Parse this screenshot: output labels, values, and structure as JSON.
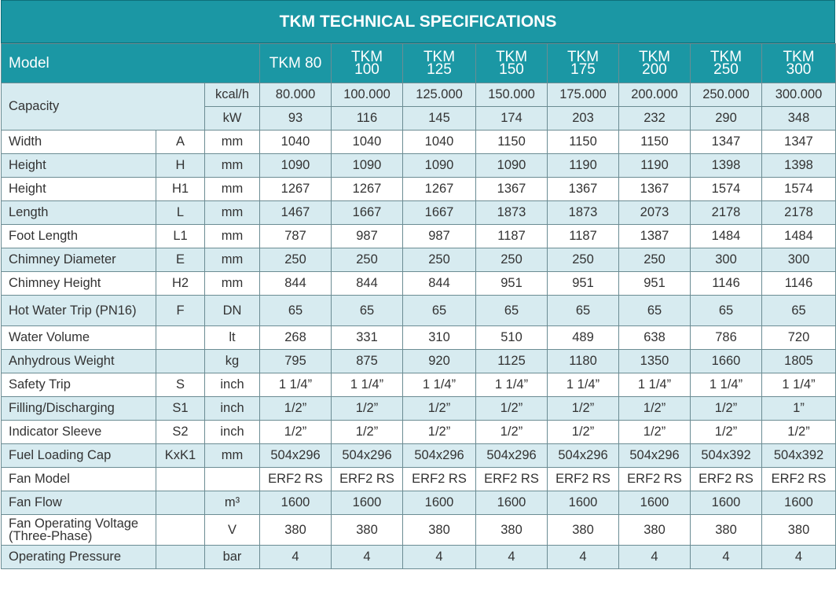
{
  "title": "TKM TECHNICAL SPECIFICATIONS",
  "header": {
    "model_label": "Model",
    "models": [
      {
        "line1": "TKM 80",
        "line2": ""
      },
      {
        "line1": "TKM",
        "line2": "100"
      },
      {
        "line1": "TKM",
        "line2": "125"
      },
      {
        "line1": "TKM",
        "line2": "150"
      },
      {
        "line1": "TKM",
        "line2": "175"
      },
      {
        "line1": "TKM",
        "line2": "200"
      },
      {
        "line1": "TKM",
        "line2": "250"
      },
      {
        "line1": "TKM",
        "line2": "300"
      }
    ]
  },
  "capacity": {
    "label": "Capacity",
    "rows": [
      {
        "unit": "kcal/h",
        "values": [
          "80.000",
          "100.000",
          "125.000",
          "150.000",
          "175.000",
          "200.000",
          "250.000",
          "300.000"
        ]
      },
      {
        "unit": "kW",
        "values": [
          "93",
          "116",
          "145",
          "174",
          "203",
          "232",
          "290",
          "348"
        ]
      }
    ]
  },
  "rows": [
    {
      "label": "Width",
      "symbol": "A",
      "unit": "mm",
      "values": [
        "1040",
        "1040",
        "1040",
        "1150",
        "1150",
        "1150",
        "1347",
        "1347"
      ]
    },
    {
      "label": "Height",
      "symbol": "H",
      "unit": "mm",
      "values": [
        "1090",
        "1090",
        "1090",
        "1090",
        "1190",
        "1190",
        "1398",
        "1398"
      ]
    },
    {
      "label": "Height",
      "symbol": "H1",
      "unit": "mm",
      "values": [
        "1267",
        "1267",
        "1267",
        "1367",
        "1367",
        "1367",
        "1574",
        "1574"
      ]
    },
    {
      "label": "Length",
      "symbol": "L",
      "unit": "mm",
      "values": [
        "1467",
        "1667",
        "1667",
        "1873",
        "1873",
        "2073",
        "2178",
        "2178"
      ]
    },
    {
      "label": "Foot Length",
      "symbol": "L1",
      "unit": "mm",
      "values": [
        "787",
        "987",
        "987",
        "1187",
        "1187",
        "1387",
        "1484",
        "1484"
      ]
    },
    {
      "label": "Chimney Diameter",
      "symbol": "E",
      "unit": "mm",
      "values": [
        "250",
        "250",
        "250",
        "250",
        "250",
        "250",
        "300",
        "300"
      ]
    },
    {
      "label": "Chimney Height",
      "symbol": "H2",
      "unit": "mm",
      "values": [
        "844",
        "844",
        "844",
        "951",
        "951",
        "951",
        "1146",
        "1146"
      ]
    },
    {
      "label": "Hot Water Trip (PN16)",
      "symbol": "F",
      "unit": "DN",
      "values": [
        "65",
        "65",
        "65",
        "65",
        "65",
        "65",
        "65",
        "65"
      ],
      "tall": true
    },
    {
      "label": "Water Volume",
      "symbol": "",
      "unit": "lt",
      "values": [
        "268",
        "331",
        "310",
        "510",
        "489",
        "638",
        "786",
        "720"
      ]
    },
    {
      "label": "Anhydrous Weight",
      "symbol": "",
      "unit": "kg",
      "values": [
        "795",
        "875",
        "920",
        "1125",
        "1180",
        "1350",
        "1660",
        "1805"
      ]
    },
    {
      "label": "Safety Trip",
      "symbol": "S",
      "unit": "inch",
      "values": [
        "1 1/4”",
        "1 1/4”",
        "1 1/4”",
        "1 1/4”",
        "1 1/4”",
        "1 1/4”",
        "1 1/4”",
        "1 1/4”"
      ]
    },
    {
      "label": "Filling/Discharging",
      "symbol": "S1",
      "unit": "inch",
      "values": [
        "1/2”",
        "1/2”",
        "1/2”",
        "1/2”",
        "1/2”",
        "1/2”",
        "1/2”",
        "1”"
      ]
    },
    {
      "label": "Indicator Sleeve",
      "symbol": "S2",
      "unit": "inch",
      "values": [
        "1/2”",
        "1/2”",
        "1/2”",
        "1/2”",
        "1/2”",
        "1/2”",
        "1/2”",
        "1/2”"
      ]
    },
    {
      "label": "Fuel Loading Cap",
      "symbol": "KxK1",
      "unit": "mm",
      "values": [
        "504x296",
        "504x296",
        "504x296",
        "504x296",
        "504x296",
        "504x296",
        "504x392",
        "504x392"
      ]
    },
    {
      "label": "Fan Model",
      "symbol": "",
      "unit": "",
      "values": [
        "ERF2 RS",
        "ERF2 RS",
        "ERF2 RS",
        "ERF2 RS",
        "ERF2 RS",
        "ERF2 RS",
        "ERF2 RS",
        "ERF2 RS"
      ]
    },
    {
      "label": "Fan Flow",
      "symbol": "",
      "unit": "m³",
      "values": [
        "1600",
        "1600",
        "1600",
        "1600",
        "1600",
        "1600",
        "1600",
        "1600"
      ]
    },
    {
      "label": "Fan Operating Voltage (Three-Phase)",
      "symbol": "",
      "unit": "V",
      "values": [
        "380",
        "380",
        "380",
        "380",
        "380",
        "380",
        "380",
        "380"
      ],
      "tall": true
    },
    {
      "label": "Operating Pressure",
      "symbol": "",
      "unit": "bar",
      "values": [
        "4",
        "4",
        "4",
        "4",
        "4",
        "4",
        "4",
        "4"
      ]
    }
  ],
  "colors": {
    "header_bg": "#1b97a4",
    "row_tint": "#d7ebf0"
  }
}
